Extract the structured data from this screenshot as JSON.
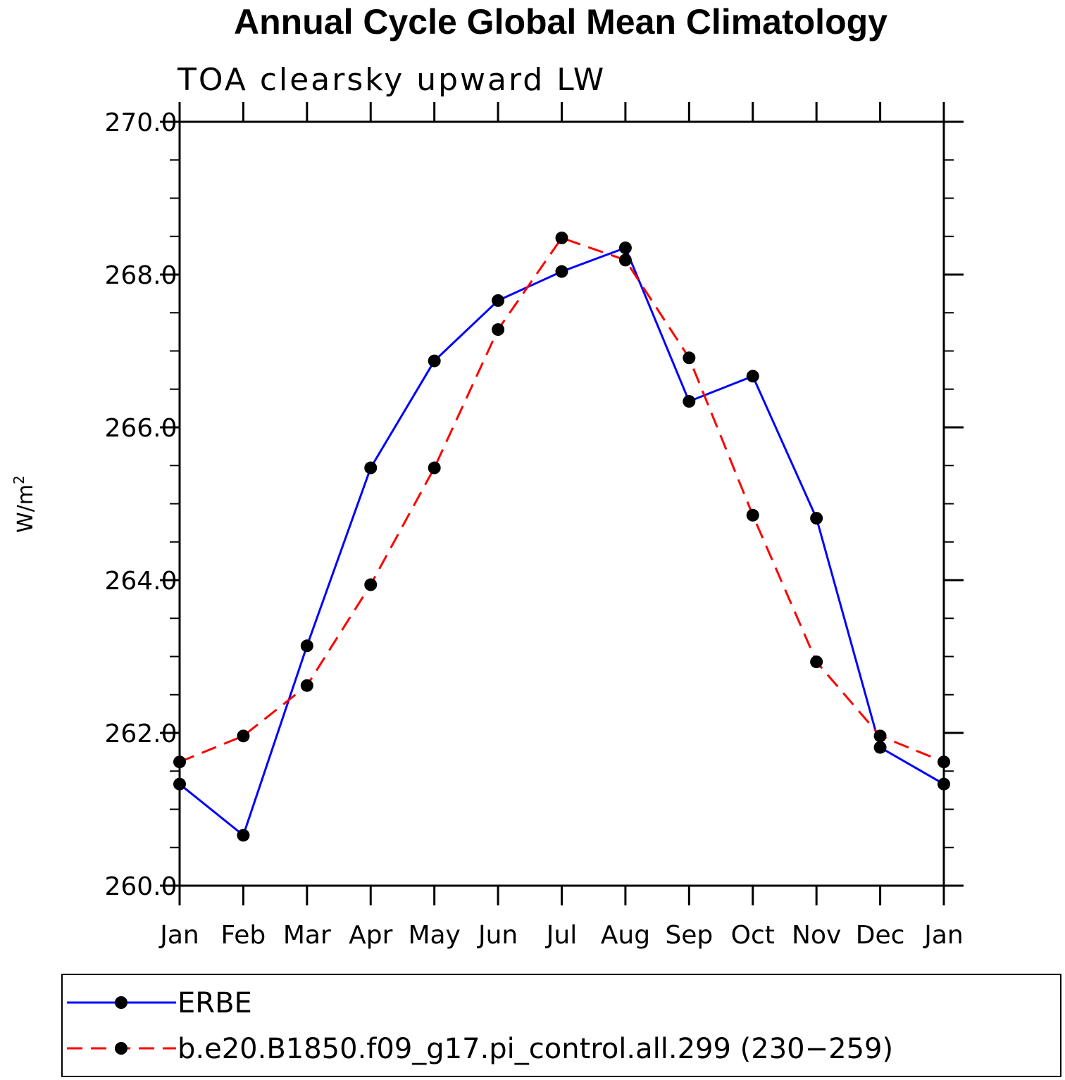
{
  "chart_data": {
    "type": "line",
    "title": "Annual Cycle Global Mean Climatology",
    "subtitle": "TOA clearsky upward LW",
    "ylabel": "W/m",
    "ylabel_sup": "2",
    "categories": [
      "Jan",
      "Feb",
      "Mar",
      "Apr",
      "May",
      "Jun",
      "Jul",
      "Aug",
      "Sep",
      "Oct",
      "Nov",
      "Dec",
      "Jan"
    ],
    "ylim": [
      260.0,
      270.0
    ],
    "yticks": [
      "260.0",
      "262.0",
      "264.0",
      "266.0",
      "268.0",
      "270.0"
    ],
    "series": [
      {
        "name": "ERBE",
        "color": "#0000ff",
        "style": "solid",
        "values": [
          261.33,
          260.66,
          263.14,
          265.47,
          266.87,
          267.66,
          268.04,
          268.35,
          266.34,
          266.67,
          264.81,
          261.81,
          261.33
        ]
      },
      {
        "name": "b.e20.B1850.f09_g17.pi_control.all.299 (230−259)",
        "color": "#ff0000",
        "style": "dashed",
        "values": [
          261.62,
          261.96,
          262.62,
          263.94,
          265.47,
          267.28,
          268.48,
          268.19,
          266.91,
          264.85,
          262.93,
          261.96,
          261.62
        ]
      }
    ],
    "marker_color": "#000000",
    "grid": false,
    "legend_position": "bottom"
  }
}
